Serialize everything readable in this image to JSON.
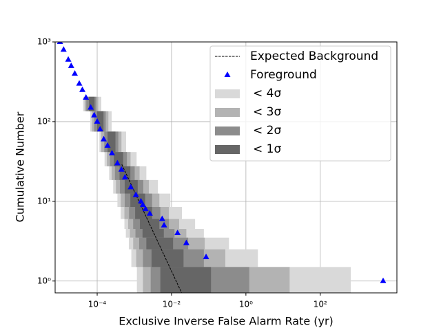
{
  "chart_data": {
    "type": "line",
    "xlabel": "Exclusive Inverse False Alarm Rate (yr)",
    "ylabel": "Cumulative Number",
    "xscale": "log",
    "yscale": "log",
    "grid": true,
    "legend": "upper right",
    "xlim": [
      7.4e-06,
      11500
    ],
    "ylim": [
      0.71,
      1000
    ],
    "xticks": [
      {
        "value": 0.0001,
        "label": "10⁻⁴"
      },
      {
        "value": 0.01,
        "label": "10⁻²"
      },
      {
        "value": 1,
        "label": "10⁰"
      },
      {
        "value": 100,
        "label": "10²"
      }
    ],
    "yticks": [
      {
        "value": 1,
        "label": "10⁰"
      },
      {
        "value": 10,
        "label": "10¹"
      },
      {
        "value": 100,
        "label": "10²"
      },
      {
        "value": 1000,
        "label": "10³"
      }
    ],
    "series": [
      {
        "name": "Expected Background",
        "color": "#000000",
        "linestyle": "dashed",
        "x": [
          0.00046,
          0.0187
        ],
        "values": [
          29,
          0.71
        ]
      },
      {
        "name": "Foreground",
        "color": "#0000ff",
        "marker": "triangle",
        "x": [
          1e-05,
          1.25e-05,
          1.67e-05,
          2e-05,
          2.5e-05,
          3.3e-05,
          4e-05,
          5e-05,
          6.7e-05,
          8.3e-05,
          0.0001,
          0.00012,
          0.00015,
          0.00019,
          0.00025,
          0.00035,
          0.00045,
          0.00056,
          0.0008,
          0.0011,
          0.0015,
          0.0017,
          0.002,
          0.0026,
          0.0056,
          0.0063,
          0.0145,
          0.025,
          0.085,
          4900
        ],
        "values": [
          1000,
          800,
          600,
          500,
          400,
          300,
          250,
          200,
          150,
          120,
          100,
          80,
          60,
          50,
          40,
          30,
          25,
          20,
          15,
          12,
          10,
          9,
          8,
          7,
          6,
          5,
          4,
          3,
          2,
          1
        ]
      }
    ],
    "band_levels": [
      1,
      2,
      3,
      4,
      5,
      7,
      10,
      15,
      22,
      33,
      50,
      100,
      170
    ],
    "bands": [
      {
        "name": "< 4σ",
        "color": "#d9d9d9",
        "lo": [
          0.00117,
          0.00083,
          0.00071,
          0.00059,
          0.00054,
          0.00043,
          0.00035,
          0.00027,
          0.00021,
          0.000158,
          0.000115,
          6.5e-05,
          4.2e-05
        ],
        "hi": [
          660,
          2.1,
          0.35,
          0.074,
          0.043,
          0.019,
          0.0093,
          0.0043,
          0.0021,
          0.00115,
          0.0006,
          0.000245,
          0.000129
        ]
      },
      {
        "name": "< 3σ",
        "color": "#b3b3b3",
        "lo": [
          0.0017,
          0.00112,
          0.00093,
          0.00076,
          0.00068,
          0.00054,
          0.00043,
          0.00032,
          0.000245,
          0.000182,
          0.000129,
          7.2e-05,
          4.6e-05
        ],
        "hi": [
          15,
          0.28,
          0.078,
          0.025,
          0.016,
          0.0085,
          0.0047,
          0.00245,
          0.00138,
          0.00079,
          0.00045,
          0.0002,
          0.000107
        ]
      },
      {
        "name": "< 2σ",
        "color": "#8c8c8c",
        "lo": [
          0.00275,
          0.0017,
          0.00135,
          0.00107,
          0.00093,
          0.00072,
          0.00055,
          0.00041,
          0.0003,
          0.00022,
          0.000155,
          8.3e-05,
          5.1e-05
        ],
        "hi": [
          1.23,
          0.074,
          0.028,
          0.012,
          0.0085,
          0.005,
          0.003,
          0.00174,
          0.00102,
          0.00063,
          0.00037,
          0.00017,
          9.5e-05
        ]
      },
      {
        "name": "< 1σ",
        "color": "#666666",
        "lo": [
          0.005,
          0.0029,
          0.0021,
          0.00166,
          0.00141,
          0.00105,
          0.00078,
          0.00055,
          0.0004,
          0.00028,
          0.00019,
          0.0001,
          6e-05
        ],
        "hi": [
          0.115,
          0.021,
          0.011,
          0.0062,
          0.0047,
          0.003,
          0.00195,
          0.00123,
          0.00078,
          0.0005,
          0.00031,
          0.000148,
          8.5e-05
        ]
      }
    ]
  }
}
